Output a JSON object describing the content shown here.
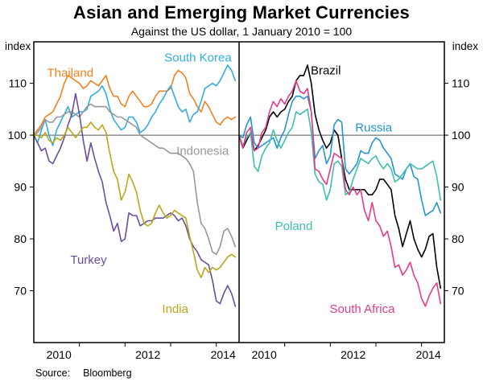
{
  "title": "Asian and Emerging Market Currencies",
  "subtitle": "Against the US dollar, 1 January 2010 = 100",
  "axis": {
    "unit_left": "index",
    "unit_right": "index",
    "ylim": [
      60,
      118
    ],
    "y_ticks": [
      70,
      80,
      90,
      100,
      110
    ],
    "reference_line": 100,
    "x_start": 2010.0,
    "x_end": 2014.5,
    "x_tick_years": [
      2011,
      2012,
      2013,
      2014
    ],
    "x_year_labels": [
      {
        "text": "2010",
        "x": 2010.55
      },
      {
        "text": "2012",
        "x": 2012.5
      },
      {
        "text": "2014",
        "x": 2014.15
      }
    ]
  },
  "source": {
    "label": "Source:",
    "value": "Bloomberg"
  },
  "chart_data": [
    {
      "type": "line",
      "panel": "left",
      "x_start": 2010.0,
      "x_step_months": 1,
      "series": [
        {
          "name": "Thailand",
          "color": "#F5811F",
          "label_x": 2010.8,
          "label_y": 112,
          "values": [
            100,
            101,
            102,
            103.5,
            104,
            104.5,
            106,
            107.5,
            110,
            111.5,
            111,
            110.5,
            110,
            109,
            109.5,
            110.5,
            110,
            109.5,
            110.5,
            111.5,
            109,
            107.5,
            107.5,
            106,
            105.5,
            107.5,
            108.5,
            107.5,
            106.5,
            105.5,
            105.5,
            106,
            107.5,
            108.5,
            108.5,
            108.5,
            109,
            111.5,
            112.5,
            112,
            111,
            108,
            107,
            105.5,
            104.5,
            106.5,
            105.5,
            104,
            102.5,
            102,
            103,
            103.5,
            103,
            103.5
          ]
        },
        {
          "name": "South Korea",
          "color": "#33ADE3",
          "label_x": 2013.6,
          "label_y": 115,
          "values": [
            100,
            98.5,
            101,
            103,
            100,
            98,
            101,
            102.5,
            104,
            105.5,
            103.5,
            104,
            104.5,
            104.5,
            105,
            107.5,
            108,
            108.5,
            109.5,
            108,
            105,
            103,
            102,
            101,
            101.5,
            103.5,
            103.5,
            102.5,
            100.5,
            101,
            102,
            103.5,
            104.5,
            106,
            107,
            108.5,
            109.5,
            107.5,
            105.5,
            104.5,
            105,
            102.5,
            104,
            104.5,
            106.5,
            109,
            109.5,
            110,
            109.5,
            110.5,
            112,
            113.5,
            112.5,
            110.5
          ]
        },
        {
          "name": "Indonesia",
          "color": "#989898",
          "label_x": 2013.7,
          "label_y": 97,
          "values": [
            100,
            100.5,
            101.5,
            103,
            102.5,
            102.5,
            103.5,
            103.5,
            104,
            104.5,
            104.5,
            104,
            103.5,
            104.5,
            105.5,
            106,
            105.5,
            105.5,
            105.5,
            105.5,
            104.5,
            104,
            103.5,
            103.5,
            103,
            102.5,
            102,
            101.5,
            100,
            99.5,
            99,
            98.5,
            98,
            97.5,
            97.5,
            97,
            96.5,
            96.5,
            96.5,
            96,
            95.5,
            94.5,
            93,
            87,
            83,
            82,
            80,
            77.5,
            77,
            78.5,
            81.5,
            82,
            80.5,
            78.5
          ]
        },
        {
          "name": "Turkey",
          "color": "#6B4EA0",
          "label_x": 2011.2,
          "label_y": 76,
          "values": [
            100,
            98.5,
            97,
            97.5,
            95,
            94.5,
            96,
            97.5,
            99.5,
            102,
            104,
            108,
            104,
            99,
            95,
            98.5,
            95.5,
            93,
            91,
            87,
            84.5,
            81.5,
            83,
            79.5,
            80,
            85,
            84.5,
            84.5,
            82.5,
            83,
            83.5,
            83.5,
            84,
            84,
            84,
            84.5,
            85,
            84.5,
            83.5,
            84,
            82.5,
            80,
            78.5,
            77.5,
            76,
            75.5,
            75,
            72,
            68,
            67.5,
            69.5,
            71,
            69.5,
            67
          ]
        },
        {
          "name": "India",
          "color": "#B9A818",
          "label_x": 2013.1,
          "label_y": 66.5,
          "values": [
            100,
            100,
            99.5,
            100.5,
            99,
            98.5,
            99.5,
            99,
            100,
            101.5,
            100.5,
            99.5,
            100.5,
            101.5,
            101.5,
            102.5,
            101.5,
            101,
            102,
            100.5,
            96.5,
            93,
            91.5,
            87.5,
            89,
            92.5,
            91,
            89,
            85.5,
            83,
            82.5,
            83,
            85,
            86.5,
            85,
            84,
            84.5,
            85.5,
            85,
            84.5,
            84,
            80.5,
            77.5,
            74,
            72.5,
            74.5,
            73.5,
            74.5,
            74,
            74.5,
            75.5,
            76.5,
            77,
            76.5
          ]
        }
      ]
    },
    {
      "type": "line",
      "panel": "right",
      "x_start": 2010.0,
      "x_step_months": 1,
      "series": [
        {
          "name": "Brazil",
          "color": "#000000",
          "label_x": 2011.9,
          "label_y": 112.5,
          "values": [
            100,
            97.5,
            99,
            100.5,
            97,
            98,
            99.5,
            101,
            103.5,
            104.5,
            103.5,
            104.5,
            105,
            106.5,
            107.5,
            110.5,
            111.5,
            111.5,
            113.5,
            110,
            104,
            101,
            99,
            97.5,
            98.5,
            101,
            100,
            95.5,
            91.5,
            89.5,
            89.5,
            89.5,
            89.5,
            89.5,
            88.5,
            88.5,
            89.5,
            91.5,
            91.5,
            90.5,
            89.5,
            84.5,
            82,
            78.5,
            81,
            83.5,
            80,
            78,
            76.5,
            78,
            80.5,
            81,
            74.5,
            70.5
          ]
        },
        {
          "name": "Russia",
          "color": "#2694D1",
          "label_x": 2012.95,
          "label_y": 101.5,
          "values": [
            100,
            99.5,
            102,
            103.5,
            98.5,
            97.5,
            98,
            98.5,
            99,
            99.5,
            97.5,
            99.5,
            101,
            104,
            106.5,
            107.5,
            107.5,
            107,
            107.5,
            104.5,
            95.5,
            97,
            98,
            94.5,
            96,
            102,
            103,
            102.5,
            93.5,
            92.5,
            93.5,
            94.5,
            97,
            96.5,
            96.5,
            98.5,
            99.5,
            99,
            97.5,
            96.5,
            95.5,
            92.5,
            92,
            91.5,
            93.5,
            94.5,
            92,
            91.5,
            87.5,
            84.5,
            85,
            85.5,
            87,
            85
          ]
        },
        {
          "name": "Poland",
          "color": "#3DBFAD",
          "label_x": 2011.2,
          "label_y": 82.5,
          "values": [
            100,
            98,
            99.5,
            100.5,
            94,
            93,
            96,
            97.5,
            98.5,
            101,
            99,
            97.5,
            99,
            100.5,
            101.5,
            104.5,
            104,
            104.5,
            105,
            100.5,
            92.5,
            91,
            90.5,
            87.5,
            89.5,
            94.5,
            95,
            94,
            88.5,
            89,
            91.5,
            93.5,
            95.5,
            95,
            94.5,
            95.5,
            96,
            94.5,
            93.5,
            94.5,
            93.5,
            91,
            91.5,
            92.5,
            93.5,
            94.5,
            94,
            93.5,
            93.5,
            94,
            94.5,
            95,
            92,
            87.5
          ]
        },
        {
          "name": "South Africa",
          "color": "#E8398B",
          "label_x": 2012.7,
          "label_y": 66.5,
          "values": [
            100,
            97.5,
            100.5,
            101.5,
            97,
            97.5,
            100.5,
            101.5,
            104.5,
            106.5,
            105.5,
            107,
            106,
            107.5,
            108.5,
            110.5,
            108.5,
            108,
            109,
            104.5,
            93.5,
            93,
            91.5,
            90.5,
            93.5,
            96.5,
            96,
            95.5,
            89.5,
            88.5,
            90,
            88.5,
            89.5,
            85.5,
            83.5,
            87,
            83.5,
            82.5,
            80.5,
            81.5,
            78.5,
            74.5,
            75,
            73,
            74,
            75.5,
            73,
            71.5,
            68.5,
            67,
            69,
            70.5,
            71.5,
            67.5
          ]
        }
      ]
    }
  ]
}
